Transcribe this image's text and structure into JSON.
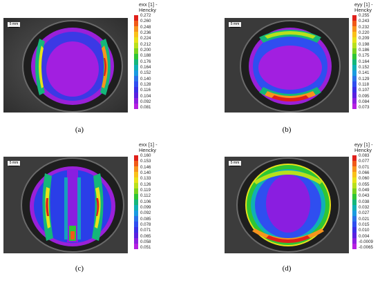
{
  "panels": [
    {
      "id": "a",
      "scale_label": "5 mm",
      "legend_title_1": "exx [1] -",
      "legend_title_2": "Hencky",
      "ticks": [
        "0.272",
        "0.260",
        "0.248",
        "0.236",
        "0.224",
        "0.212",
        "0.200",
        "0.188",
        "0.176",
        "0.164",
        "0.152",
        "0.140",
        "0.128",
        "0.116",
        "0.104",
        "0.092",
        "0.081"
      ],
      "caption": "(a)",
      "pattern": "exx-sides"
    },
    {
      "id": "b",
      "scale_label": "5 mm",
      "legend_title_1": "eyy [1] -",
      "legend_title_2": "Hencky",
      "ticks": [
        "0.255",
        "0.243",
        "0.232",
        "0.220",
        "0.209",
        "0.198",
        "0.186",
        "0.175",
        "0.164",
        "0.152",
        "0.141",
        "0.129",
        "0.118",
        "0.107",
        "0.095",
        "0.084",
        "0.073"
      ],
      "caption": "(b)",
      "pattern": "eyy-topbottom"
    },
    {
      "id": "c",
      "scale_label": "5 mm",
      "legend_title_1": "exx [1] -",
      "legend_title_2": "Hencky",
      "ticks": [
        "0.160",
        "0.153",
        "0.146",
        "0.140",
        "0.133",
        "0.126",
        "0.119",
        "0.112",
        "0.106",
        "0.099",
        "0.092",
        "0.085",
        "0.078",
        "0.071",
        "0.065",
        "0.058",
        "0.051"
      ],
      "caption": "(c)",
      "pattern": "exx-vertical"
    },
    {
      "id": "d",
      "scale_label": "5 mm",
      "legend_title_1": "eyy [1] -",
      "legend_title_2": "Hencky",
      "ticks": [
        "0.083",
        "0.077",
        "0.071",
        "0.066",
        "0.060",
        "0.055",
        "0.049",
        "0.043",
        "0.038",
        "0.032",
        "0.027",
        "0.021",
        "0.015",
        "0.010",
        "0.004",
        "-0.0009",
        "-0.0065"
      ],
      "caption": "(d)",
      "pattern": "eyy-ring"
    }
  ],
  "colormap": [
    "#e0201a",
    "#f05a17",
    "#f7941d",
    "#f9c11a",
    "#e8e21a",
    "#b8e01c",
    "#7ad21f",
    "#2fc634",
    "#14b77a",
    "#10b0b6",
    "#1a9be0",
    "#2a72e8",
    "#2f4ef0",
    "#3a2fe6",
    "#5a1fe0",
    "#8a1ee0",
    "#b61fe2"
  ]
}
